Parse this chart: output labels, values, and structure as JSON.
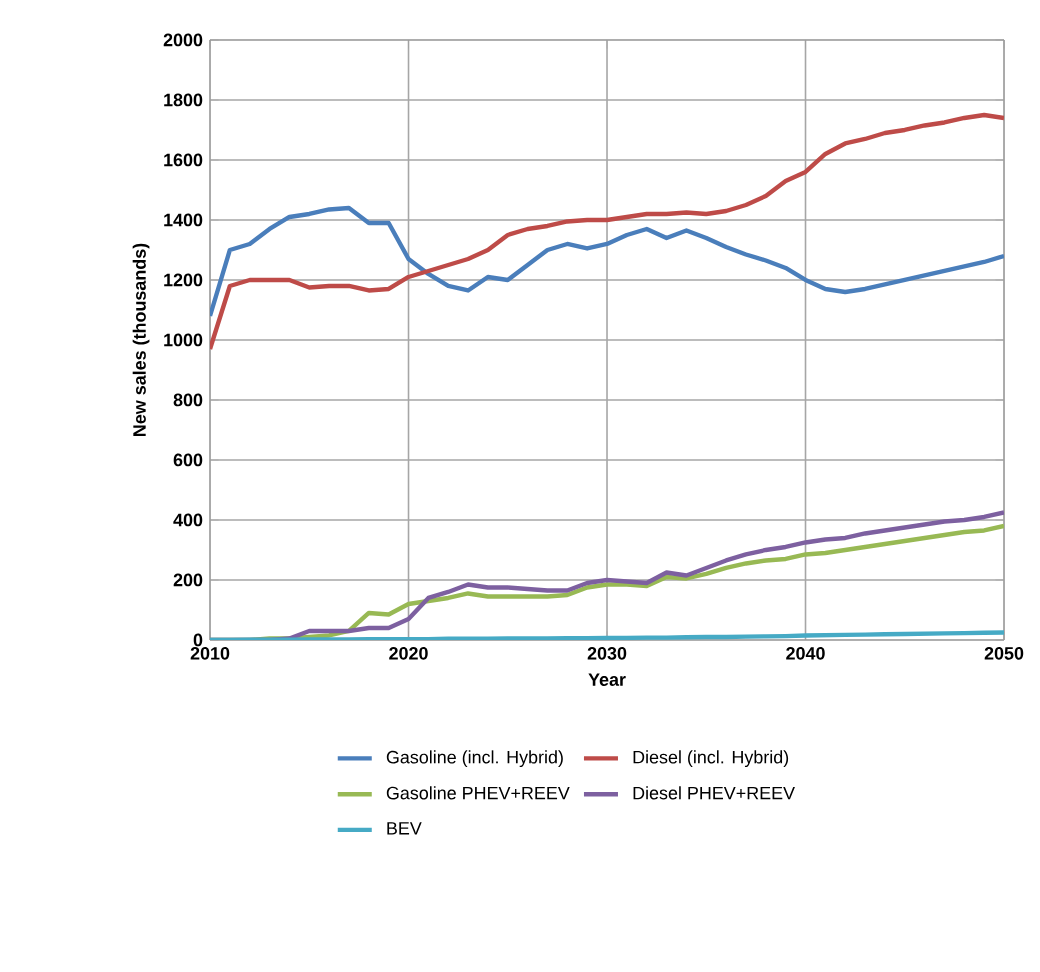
{
  "chart_data": {
    "type": "line",
    "xlabel": "Year",
    "ylabel": "New sales (thousands)",
    "x": [
      2010,
      2011,
      2012,
      2013,
      2014,
      2015,
      2016,
      2017,
      2018,
      2019,
      2020,
      2021,
      2022,
      2023,
      2024,
      2025,
      2026,
      2027,
      2028,
      2029,
      2030,
      2031,
      2032,
      2033,
      2034,
      2035,
      2036,
      2037,
      2038,
      2039,
      2040,
      2041,
      2042,
      2043,
      2044,
      2045,
      2046,
      2047,
      2048,
      2049,
      2050
    ],
    "series": [
      {
        "name": "Gasoline (incl. Hybrid)",
        "color": "#4a7ebb",
        "values": [
          1080,
          1300,
          1320,
          1370,
          1410,
          1420,
          1435,
          1440,
          1390,
          1390,
          1270,
          1220,
          1180,
          1165,
          1210,
          1200,
          1250,
          1300,
          1320,
          1305,
          1320,
          1350,
          1370,
          1340,
          1365,
          1340,
          1310,
          1285,
          1265,
          1240,
          1200,
          1170,
          1160,
          1170,
          1185,
          1200,
          1215,
          1230,
          1245,
          1260,
          1280
        ]
      },
      {
        "name": "Diesel (incl. Hybrid)",
        "color": "#be4b48",
        "values": [
          970,
          1180,
          1200,
          1200,
          1200,
          1175,
          1180,
          1180,
          1165,
          1170,
          1210,
          1230,
          1250,
          1270,
          1300,
          1350,
          1370,
          1380,
          1395,
          1400,
          1400,
          1410,
          1420,
          1420,
          1425,
          1420,
          1430,
          1450,
          1480,
          1530,
          1560,
          1620,
          1655,
          1670,
          1690,
          1700,
          1715,
          1725,
          1740,
          1750,
          1740
        ]
      },
      {
        "name": "Gasoline PHEV+REEV",
        "color": "#98b954",
        "values": [
          0,
          0,
          0,
          5,
          5,
          10,
          15,
          30,
          90,
          85,
          120,
          130,
          140,
          155,
          145,
          145,
          145,
          145,
          150,
          175,
          185,
          185,
          180,
          210,
          205,
          220,
          240,
          255,
          265,
          270,
          285,
          290,
          300,
          310,
          320,
          330,
          340,
          350,
          360,
          365,
          380
        ]
      },
      {
        "name": "Diesel PHEV+REEV",
        "color": "#7d60a0",
        "values": [
          0,
          0,
          0,
          0,
          5,
          30,
          30,
          30,
          40,
          40,
          70,
          140,
          160,
          185,
          175,
          175,
          170,
          165,
          165,
          190,
          200,
          195,
          190,
          225,
          215,
          240,
          265,
          285,
          300,
          310,
          325,
          335,
          340,
          355,
          365,
          375,
          385,
          395,
          400,
          410,
          425
        ]
      },
      {
        "name": "BEV",
        "color": "#46aac5",
        "values": [
          0,
          0,
          1,
          1,
          1,
          2,
          2,
          2,
          3,
          3,
          3,
          3,
          4,
          4,
          4,
          5,
          5,
          5,
          6,
          6,
          7,
          7,
          8,
          8,
          9,
          10,
          10,
          11,
          12,
          13,
          15,
          16,
          17,
          18,
          19,
          20,
          21,
          22,
          23,
          24,
          25
        ]
      }
    ],
    "xlim": [
      2010,
      2050
    ],
    "xticks": [
      2010,
      2020,
      2030,
      2040,
      2050
    ],
    "ylim": [
      0,
      2000
    ],
    "yticks": [
      0,
      200,
      400,
      600,
      800,
      1000,
      1200,
      1400,
      1600,
      1800,
      2000
    ],
    "grid": true,
    "legend": "bottom"
  }
}
